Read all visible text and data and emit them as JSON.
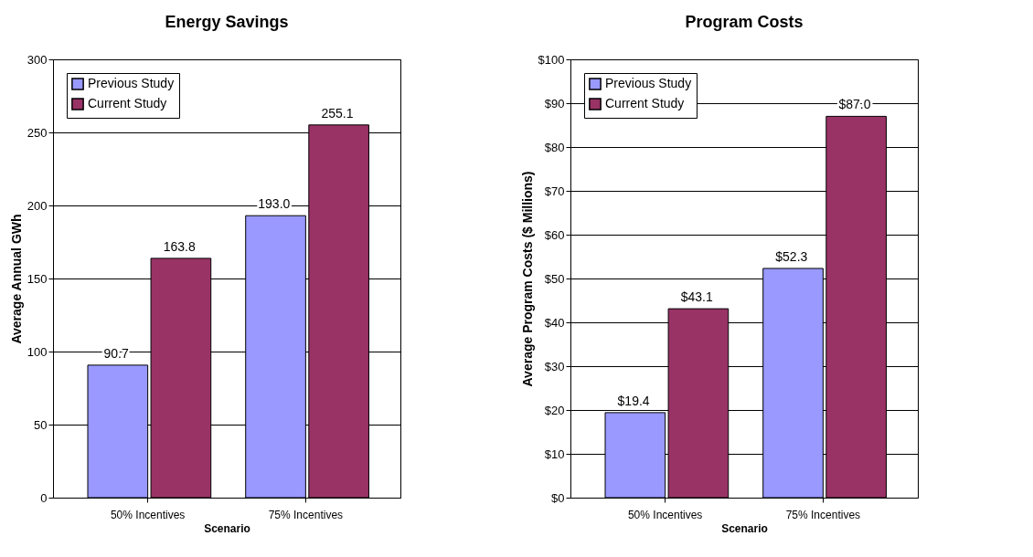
{
  "chart_data": [
    {
      "type": "bar",
      "title": "Energy Savings",
      "xlabel": "Scenario",
      "ylabel": "Average Annual GWh",
      "categories": [
        "50% Incentives",
        "75% Incentives"
      ],
      "series": [
        {
          "name": "Previous Study",
          "color": "#9999ff",
          "values": [
            90.7,
            193.0
          ],
          "value_labels": [
            "90.7",
            "193.0"
          ]
        },
        {
          "name": "Current Study",
          "color": "#993366",
          "values": [
            163.8,
            255.1
          ],
          "value_labels": [
            "163.8",
            "255.1"
          ]
        }
      ],
      "ylim": [
        0,
        300
      ],
      "yticks": [
        0,
        50,
        100,
        150,
        200,
        250,
        300
      ],
      "grid": "y",
      "legend": "top left"
    },
    {
      "type": "bar",
      "title": "Program Costs",
      "xlabel": "Scenario",
      "ylabel": "Average Program Costs ($ Millions)",
      "categories": [
        "50% Incentives",
        "75% Incentives"
      ],
      "series": [
        {
          "name": "Previous Study",
          "color": "#9999ff",
          "values": [
            19.4,
            52.3
          ],
          "value_labels": [
            "$19.4",
            "$52.3"
          ]
        },
        {
          "name": "Current Study",
          "color": "#993366",
          "values": [
            43.1,
            87.0
          ],
          "value_labels": [
            "$43.1",
            "$87.0"
          ]
        }
      ],
      "ylim": [
        0,
        100
      ],
      "yticks": [
        {
          "value": 0,
          "label": "$0"
        },
        {
          "value": 10,
          "label": "$10"
        },
        {
          "value": 20,
          "label": "$20"
        },
        {
          "value": 30,
          "label": "$30"
        },
        {
          "value": 40,
          "label": "$40"
        },
        {
          "value": 50,
          "label": "$50"
        },
        {
          "value": 60,
          "label": "$60"
        },
        {
          "value": 70,
          "label": "$70"
        },
        {
          "value": 80,
          "label": "$80"
        },
        {
          "value": 90,
          "label": "$90"
        },
        {
          "value": 100,
          "label": "$100"
        }
      ],
      "grid": "y",
      "legend": "top left"
    }
  ]
}
